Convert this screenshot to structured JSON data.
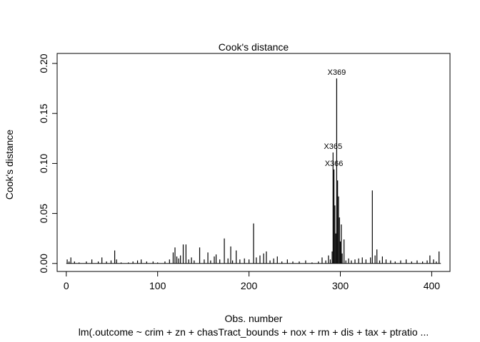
{
  "chart_data": {
    "type": "bar",
    "title": "Cook's distance",
    "xlabel": "Obs. number",
    "ylabel": "Cook's distance",
    "subtitle": "lm(.outcome ~ crim + zn + chasTract_bounds + nox + rm + dis + tax + ptratio ...",
    "xlim": [
      -10,
      420
    ],
    "ylim": [
      -0.008,
      0.21
    ],
    "xticks": [
      0,
      100,
      200,
      300,
      400
    ],
    "xtick_labels": [
      "0",
      "100",
      "200",
      "300",
      "400"
    ],
    "yticks": [
      0.0,
      0.05,
      0.1,
      0.15,
      0.2
    ],
    "ytick_labels": [
      "0.00",
      "0.05",
      "0.10",
      "0.15",
      "0.20"
    ],
    "grid": false,
    "color": "#000000",
    "points": [
      {
        "x": 1,
        "y": 0.004
      },
      {
        "x": 3,
        "y": 0.002
      },
      {
        "x": 5,
        "y": 0.006
      },
      {
        "x": 9,
        "y": 0.002
      },
      {
        "x": 14,
        "y": 0.001
      },
      {
        "x": 22,
        "y": 0.002
      },
      {
        "x": 28,
        "y": 0.004
      },
      {
        "x": 35,
        "y": 0.002
      },
      {
        "x": 39,
        "y": 0.006
      },
      {
        "x": 44,
        "y": 0.002
      },
      {
        "x": 49,
        "y": 0.003
      },
      {
        "x": 53,
        "y": 0.013
      },
      {
        "x": 55,
        "y": 0.004
      },
      {
        "x": 60,
        "y": 0.001
      },
      {
        "x": 68,
        "y": 0.001
      },
      {
        "x": 73,
        "y": 0.002
      },
      {
        "x": 78,
        "y": 0.003
      },
      {
        "x": 82,
        "y": 0.004
      },
      {
        "x": 88,
        "y": 0.002
      },
      {
        "x": 95,
        "y": 0.002
      },
      {
        "x": 100,
        "y": 0.001
      },
      {
        "x": 108,
        "y": 0.002
      },
      {
        "x": 113,
        "y": 0.004
      },
      {
        "x": 117,
        "y": 0.011
      },
      {
        "x": 119,
        "y": 0.016
      },
      {
        "x": 121,
        "y": 0.007
      },
      {
        "x": 123,
        "y": 0.005
      },
      {
        "x": 125,
        "y": 0.008
      },
      {
        "x": 128,
        "y": 0.019
      },
      {
        "x": 131,
        "y": 0.019
      },
      {
        "x": 134,
        "y": 0.004
      },
      {
        "x": 137,
        "y": 0.006
      },
      {
        "x": 140,
        "y": 0.003
      },
      {
        "x": 146,
        "y": 0.016
      },
      {
        "x": 151,
        "y": 0.004
      },
      {
        "x": 155,
        "y": 0.011
      },
      {
        "x": 158,
        "y": 0.003
      },
      {
        "x": 162,
        "y": 0.007
      },
      {
        "x": 164,
        "y": 0.009
      },
      {
        "x": 168,
        "y": 0.004
      },
      {
        "x": 173,
        "y": 0.025
      },
      {
        "x": 177,
        "y": 0.005
      },
      {
        "x": 180,
        "y": 0.017
      },
      {
        "x": 182,
        "y": 0.003
      },
      {
        "x": 186,
        "y": 0.013
      },
      {
        "x": 190,
        "y": 0.004
      },
      {
        "x": 195,
        "y": 0.005
      },
      {
        "x": 200,
        "y": 0.004
      },
      {
        "x": 205,
        "y": 0.04
      },
      {
        "x": 208,
        "y": 0.006
      },
      {
        "x": 212,
        "y": 0.008
      },
      {
        "x": 216,
        "y": 0.01
      },
      {
        "x": 219,
        "y": 0.012
      },
      {
        "x": 223,
        "y": 0.003
      },
      {
        "x": 227,
        "y": 0.005
      },
      {
        "x": 231,
        "y": 0.007
      },
      {
        "x": 236,
        "y": 0.002
      },
      {
        "x": 242,
        "y": 0.004
      },
      {
        "x": 248,
        "y": 0.002
      },
      {
        "x": 255,
        "y": 0.002
      },
      {
        "x": 262,
        "y": 0.003
      },
      {
        "x": 269,
        "y": 0.001
      },
      {
        "x": 276,
        "y": 0.002
      },
      {
        "x": 280,
        "y": 0.006
      },
      {
        "x": 284,
        "y": 0.003
      },
      {
        "x": 287,
        "y": 0.008
      },
      {
        "x": 289,
        "y": 0.004
      },
      {
        "x": 291,
        "y": 0.012
      },
      {
        "x": 292,
        "y": 0.111,
        "label": "X365"
      },
      {
        "x": 293,
        "y": 0.094,
        "label": "X366"
      },
      {
        "x": 294,
        "y": 0.058
      },
      {
        "x": 295,
        "y": 0.03
      },
      {
        "x": 296,
        "y": 0.185,
        "label": "X369"
      },
      {
        "x": 297,
        "y": 0.083
      },
      {
        "x": 298,
        "y": 0.067
      },
      {
        "x": 299,
        "y": 0.046
      },
      {
        "x": 300,
        "y": 0.022
      },
      {
        "x": 301,
        "y": 0.039
      },
      {
        "x": 302,
        "y": 0.01
      },
      {
        "x": 304,
        "y": 0.024
      },
      {
        "x": 306,
        "y": 0.003
      },
      {
        "x": 309,
        "y": 0.005
      },
      {
        "x": 312,
        "y": 0.003
      },
      {
        "x": 316,
        "y": 0.004
      },
      {
        "x": 320,
        "y": 0.005
      },
      {
        "x": 324,
        "y": 0.006
      },
      {
        "x": 328,
        "y": 0.004
      },
      {
        "x": 333,
        "y": 0.006
      },
      {
        "x": 335,
        "y": 0.073
      },
      {
        "x": 338,
        "y": 0.008
      },
      {
        "x": 340,
        "y": 0.014
      },
      {
        "x": 343,
        "y": 0.003
      },
      {
        "x": 346,
        "y": 0.007
      },
      {
        "x": 350,
        "y": 0.004
      },
      {
        "x": 355,
        "y": 0.003
      },
      {
        "x": 360,
        "y": 0.002
      },
      {
        "x": 366,
        "y": 0.003
      },
      {
        "x": 372,
        "y": 0.004
      },
      {
        "x": 378,
        "y": 0.002
      },
      {
        "x": 384,
        "y": 0.003
      },
      {
        "x": 390,
        "y": 0.002
      },
      {
        "x": 395,
        "y": 0.003
      },
      {
        "x": 398,
        "y": 0.008
      },
      {
        "x": 402,
        "y": 0.004
      },
      {
        "x": 405,
        "y": 0.002
      },
      {
        "x": 408,
        "y": 0.012
      }
    ]
  }
}
